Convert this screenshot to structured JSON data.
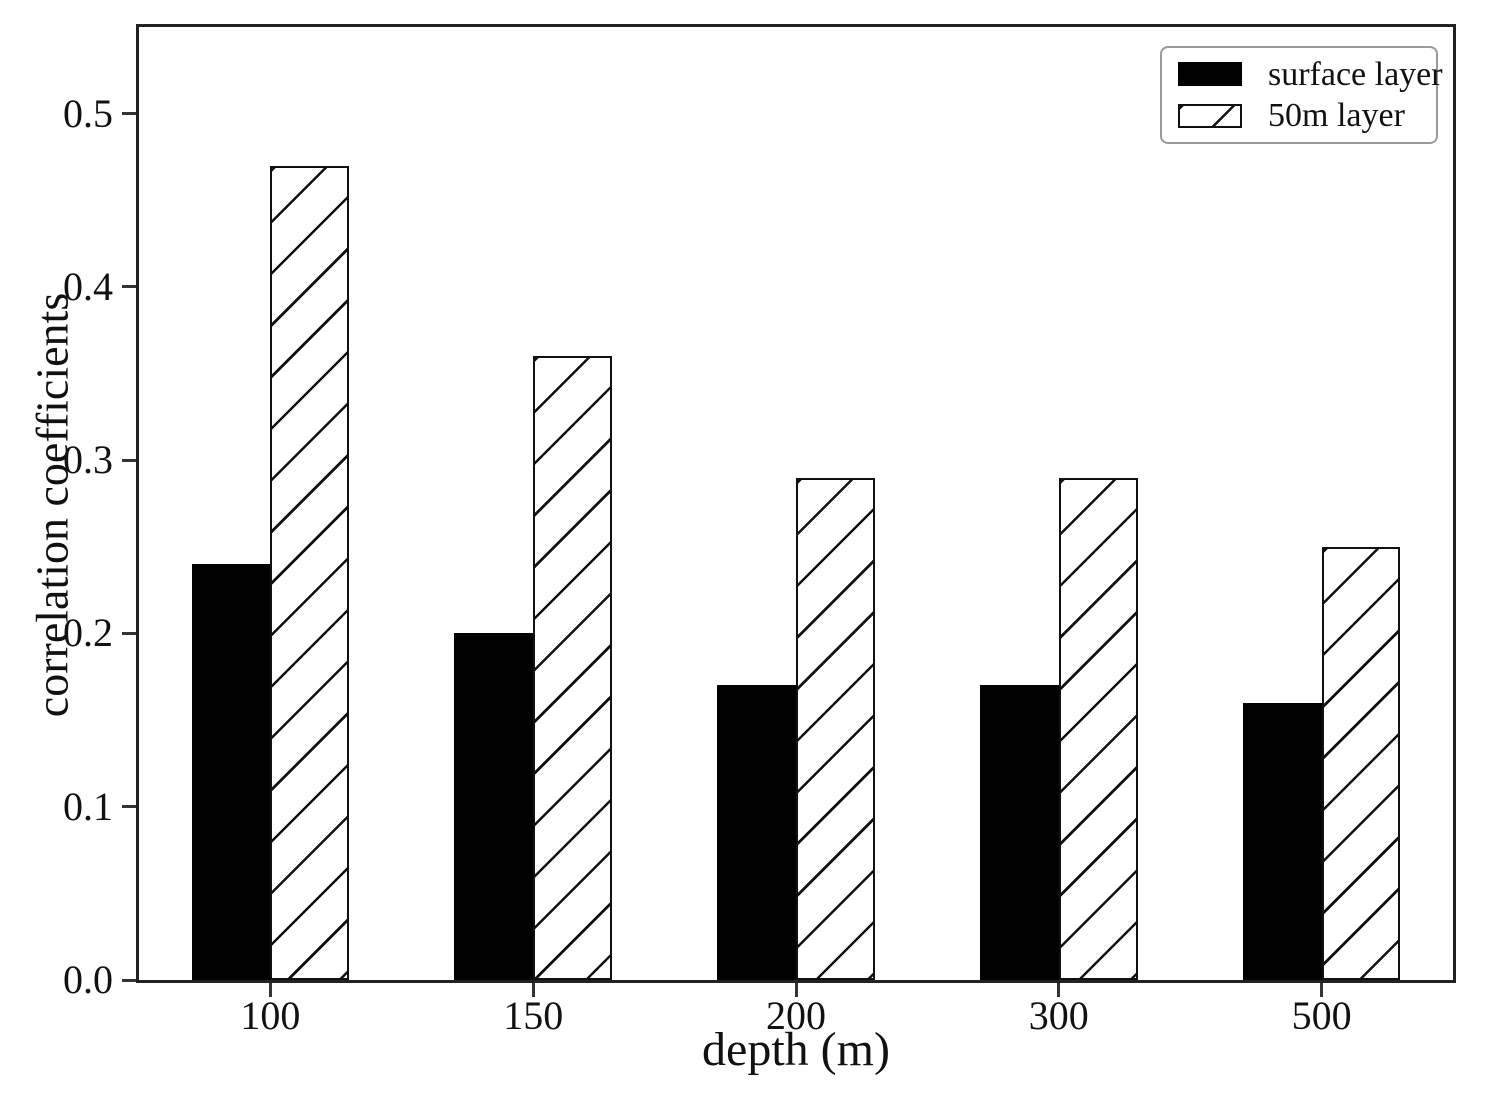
{
  "chart_data": {
    "type": "bar",
    "title": "",
    "categories": [
      "100",
      "150",
      "200",
      "300",
      "500"
    ],
    "series": [
      {
        "name": "surface layer",
        "style": "solid-black",
        "values": [
          0.24,
          0.2,
          0.17,
          0.17,
          0.16
        ]
      },
      {
        "name": "50m layer",
        "style": "white-diagonal-hatch",
        "values": [
          0.47,
          0.36,
          0.29,
          0.29,
          0.25
        ]
      }
    ],
    "xlabel": "depth (m)",
    "ylabel": "correlation coefficients",
    "ylim": [
      0,
      0.55
    ],
    "yticks": [
      "0.0",
      "0.1",
      "0.2",
      "0.3",
      "0.4",
      "0.5"
    ],
    "grid": false,
    "legend_position": "upper right",
    "bar_group_fraction": 0.6
  },
  "colors": {
    "bar_solid": "#000000",
    "bar_hatch_line": "#111111",
    "axis_line": "#222222",
    "legend_border": "#9a9a9a",
    "background": "#ffffff",
    "text": "#111111"
  }
}
